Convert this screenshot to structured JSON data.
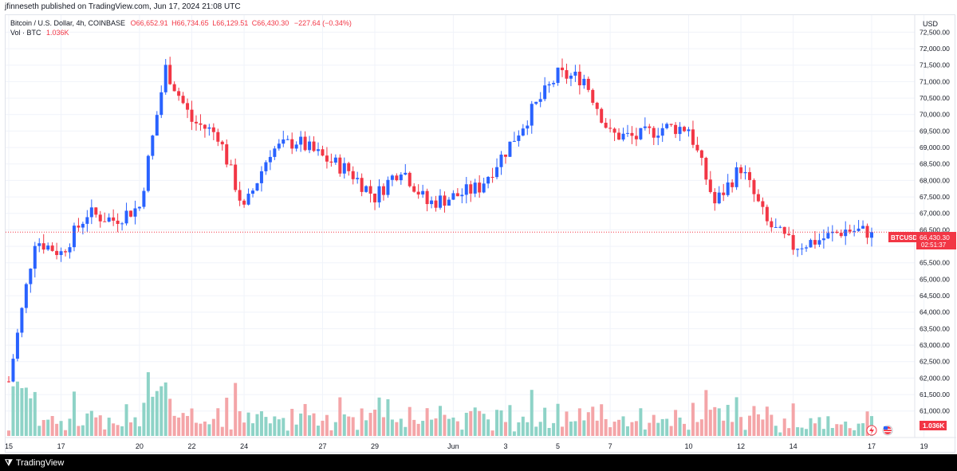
{
  "header": {
    "published": "jfinneseth published on TradingView.com, Jun 17, 2024 21:08 UTC"
  },
  "legend": {
    "symbol": "Bitcoin / U.S. Dollar, 4h, COINBASE",
    "open": "O66,652.91",
    "high": "H66,734.65",
    "low": "L66,129.51",
    "close": "C66,430.30",
    "change": "−227.64 (−0.34%)",
    "vol_label": "Vol · BTC",
    "vol_value": "1.036K"
  },
  "axis": {
    "currency": "USD",
    "price_ticks": [
      "72,500.00",
      "72,000.00",
      "71,500.00",
      "71,000.00",
      "70,500.00",
      "70,000.00",
      "69,500.00",
      "69,000.00",
      "68,500.00",
      "68,000.00",
      "67,500.00",
      "67,000.00",
      "66,500.00",
      "66,000.00",
      "65,500.00",
      "65,000.00",
      "64,500.00",
      "64,000.00",
      "63,500.00",
      "63,000.00",
      "62,500.00",
      "62,000.00",
      "61,500.00",
      "61,000.00"
    ],
    "time_ticks": [
      "15",
      "17",
      "20",
      "22",
      "24",
      "27",
      "29",
      "Jun",
      "3",
      "5",
      "7",
      "10",
      "12",
      "14",
      "17",
      "19"
    ]
  },
  "price_tag": {
    "symbol": "BTCUSD",
    "price": "66,430.30",
    "countdown": "02:51:37"
  },
  "volume_tag": {
    "value": "1.036K"
  },
  "footer": {
    "brand": "TradingView"
  },
  "colors": {
    "up": "#2962ff",
    "down": "#f23645",
    "vol_up": "#8ed3c7",
    "vol_down": "#f4a5a8",
    "grid": "#f0f3fa",
    "text": "#131722"
  },
  "chart_data": {
    "type": "candlestick",
    "symbol": "Bitcoin / U.S. Dollar",
    "interval": "4h",
    "exchange": "COINBASE",
    "ylim": [
      60800,
      72800
    ],
    "last_price": 66430.3,
    "x_start": "2024-05-15",
    "x_end": "2024-06-17",
    "close_path": [
      [
        "2024-05-15",
        61900
      ],
      [
        "2024-05-16",
        66200
      ],
      [
        "2024-05-17",
        65800
      ],
      [
        "2024-05-18",
        67000
      ],
      [
        "2024-05-19",
        66800
      ],
      [
        "2024-05-20",
        67200
      ],
      [
        "2024-05-21",
        71400
      ],
      [
        "2024-05-22",
        69800
      ],
      [
        "2024-05-23",
        69400
      ],
      [
        "2024-05-24",
        67100
      ],
      [
        "2024-05-25",
        68900
      ],
      [
        "2024-05-26",
        69200
      ],
      [
        "2024-05-27",
        68700
      ],
      [
        "2024-05-28",
        68300
      ],
      [
        "2024-05-29",
        67500
      ],
      [
        "2024-05-30",
        68400
      ],
      [
        "2024-05-31",
        67300
      ],
      [
        "2024-06-01",
        67500
      ],
      [
        "2024-06-02",
        67800
      ],
      [
        "2024-06-03",
        68900
      ],
      [
        "2024-06-04",
        70100
      ],
      [
        "2024-06-05",
        71200
      ],
      [
        "2024-06-06",
        71100
      ],
      [
        "2024-06-07",
        69400
      ],
      [
        "2024-06-08",
        69300
      ],
      [
        "2024-06-09",
        69600
      ],
      [
        "2024-06-10",
        69600
      ],
      [
        "2024-06-11",
        67300
      ],
      [
        "2024-06-12",
        68400
      ],
      [
        "2024-06-13",
        66700
      ],
      [
        "2024-06-14",
        66000
      ],
      [
        "2024-06-15",
        66200
      ],
      [
        "2024-06-16",
        66500
      ],
      [
        "2024-06-17",
        66430
      ]
    ]
  }
}
